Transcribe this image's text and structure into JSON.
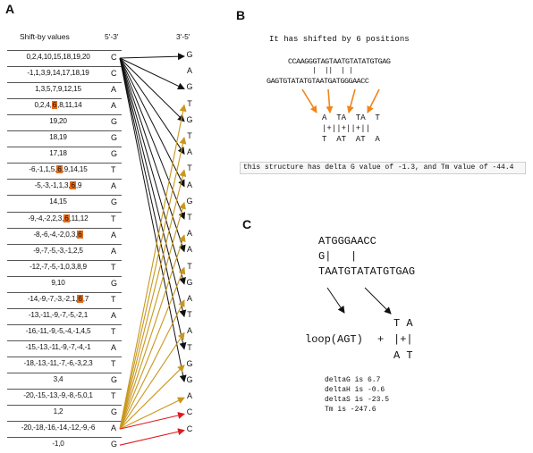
{
  "panelA": {
    "label": "A",
    "header_shift": "Shift-by values",
    "header_53": "5'-3'",
    "header_35": "3'-5'",
    "rows": [
      {
        "pre": "0,2,4,10,15,18,19,20",
        "hl": "",
        "post": "",
        "base": "C"
      },
      {
        "pre": "-1,1,3,9,14,17,18,19",
        "hl": "",
        "post": "",
        "base": "C"
      },
      {
        "pre": "1,3,5,7,9,12,15",
        "hl": "",
        "post": "",
        "base": "A"
      },
      {
        "pre": "0,2,4,",
        "hl": "6",
        "post": ",8,11,14",
        "base": "A"
      },
      {
        "pre": "19,20",
        "hl": "",
        "post": "",
        "base": "G"
      },
      {
        "pre": "18,19",
        "hl": "",
        "post": "",
        "base": "G"
      },
      {
        "pre": "17,18",
        "hl": "",
        "post": "",
        "base": "G"
      },
      {
        "pre": "-6,-1,1,5,",
        "hl": "6",
        "post": ",9,14,15",
        "base": "T"
      },
      {
        "pre": "-5,-3,-1,1,3,",
        "hl": "6",
        "post": ",9",
        "base": "A"
      },
      {
        "pre": "14,15",
        "hl": "",
        "post": "",
        "base": "G"
      },
      {
        "pre": "-9,-4,-2,2,3,",
        "hl": "6",
        "post": ",11,12",
        "base": "T"
      },
      {
        "pre": "-8,-6,-4,-2,0,3,",
        "hl": "6",
        "post": "",
        "base": "A"
      },
      {
        "pre": "-9,-7,-5,-3,-1,2,5",
        "hl": "",
        "post": "",
        "base": "A"
      },
      {
        "pre": "-12,-7,-5,-1,0,3,8,9",
        "hl": "",
        "post": "",
        "base": "T"
      },
      {
        "pre": "9,10",
        "hl": "",
        "post": "",
        "base": "G"
      },
      {
        "pre": "-14,-9,-7,-3,-2,1,",
        "hl": "6",
        "post": ",7",
        "base": "T"
      },
      {
        "pre": "-13,-11,-9,-7,-5,-2,1",
        "hl": "",
        "post": "",
        "base": "A"
      },
      {
        "pre": "-16,-11,-9,-5,-4,-1,4,5",
        "hl": "",
        "post": "",
        "base": "T"
      },
      {
        "pre": "-15,-13,-11,-9,-7,-4,-1",
        "hl": "",
        "post": "",
        "base": "A"
      },
      {
        "pre": "-18,-13,-11,-7,-6,-3,2,3",
        "hl": "",
        "post": "",
        "base": "T"
      },
      {
        "pre": "3,4",
        "hl": "",
        "post": "",
        "base": "G"
      },
      {
        "pre": "-20,-15,-13,-9,-8,-5,0,1",
        "hl": "",
        "post": "",
        "base": "T"
      },
      {
        "pre": "1,2",
        "hl": "",
        "post": "",
        "base": "G"
      },
      {
        "pre": "-20,-18,-16,-14,-12,-9,-6",
        "hl": "",
        "post": "",
        "base": "A"
      },
      {
        "pre": "-1,0",
        "hl": "",
        "post": "",
        "base": "G"
      }
    ],
    "right_bases": [
      "G",
      "A",
      "G",
      "T",
      "G",
      "T",
      "A",
      "T",
      "A",
      "G",
      "T",
      "A",
      "A",
      "T",
      "G",
      "A",
      "T",
      "A",
      "T",
      "G",
      "G",
      "A",
      "C",
      "C"
    ]
  },
  "panelB": {
    "label": "B",
    "title": "It has shifted by 6 positions",
    "seq_top": "CCAAGGGTAGTAATGTATATGTGAG",
    "pairs": "|  ||  | |",
    "seq_bottom": "GAGTGTATATGTAATGATGGGAACC",
    "dup_line1": "A  TA  TA  T",
    "dup_line2": "|+||+||+||",
    "dup_line3": "T  AT  AT  A",
    "status": "this structure has delta G value of -1.3, and Tm value of -44.4"
  },
  "panelC": {
    "label": "C",
    "line1": "ATGGGAACC",
    "line2": "G|   |",
    "line3": "TAATGTATATGTGAG",
    "loop": "loop(AGT)",
    "plus": "+",
    "hp1": "T A",
    "hp2": "|+|",
    "hp3": "A T",
    "deltaG": "deltaG is 6.7",
    "deltaH": "deltaH is -0.6",
    "deltaS": "deltaS is -23.5",
    "tm": "Tm is -247.6"
  },
  "colors": {
    "black_arrow": "#111111",
    "gold_arrow": "#c9971e",
    "red_arrow": "#e0191e",
    "orange_arrow": "#f0851a",
    "highlight": "#e46c1a"
  }
}
